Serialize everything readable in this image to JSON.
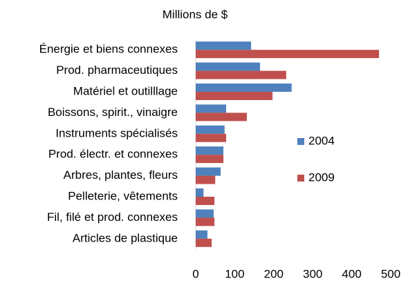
{
  "chart_data": {
    "type": "barh",
    "title": "Millions de $",
    "categories": [
      "Énergie et biens connexes",
      "Prod. pharmaceutiques",
      "Matériel et outilllage",
      "Boissons, spirit., vinaigre",
      "Instruments spécialisés",
      "Prod. électr. et connexes",
      "Arbres, plantes, fleurs",
      "Pelleterie, vêtements",
      "Fil, filé et prod. connexes",
      "Articles de plastique"
    ],
    "series": [
      {
        "name": "2004",
        "color": "#4f81bd",
        "values": [
          142,
          165,
          246,
          78,
          74,
          71,
          64,
          20,
          46,
          30
        ]
      },
      {
        "name": "2009",
        "color": "#c0504d",
        "values": [
          470,
          232,
          197,
          131,
          78,
          71,
          50,
          48,
          48,
          41
        ]
      }
    ],
    "xlim": [
      0,
      500
    ],
    "xticks": [
      0,
      100,
      200,
      300,
      400,
      500
    ],
    "grid": false
  }
}
